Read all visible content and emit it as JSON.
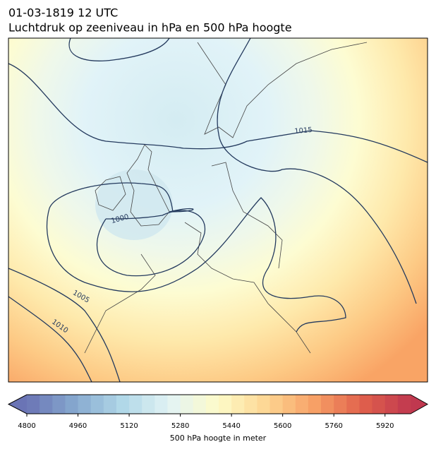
{
  "header": {
    "title": "01-03-1819 12 UTC",
    "subtitle": "Luchtdruk op zeeniveau in hPa en 500 hPa hoogte"
  },
  "map": {
    "contour_labels": [
      1015,
      1000,
      1005,
      1010
    ]
  },
  "colorbar": {
    "label": "500 hPa hoogte in meter",
    "lim": [
      4800,
      6000
    ],
    "ticks": [
      4800,
      4960,
      5120,
      5280,
      5440,
      5600,
      5760,
      5920
    ]
  }
}
